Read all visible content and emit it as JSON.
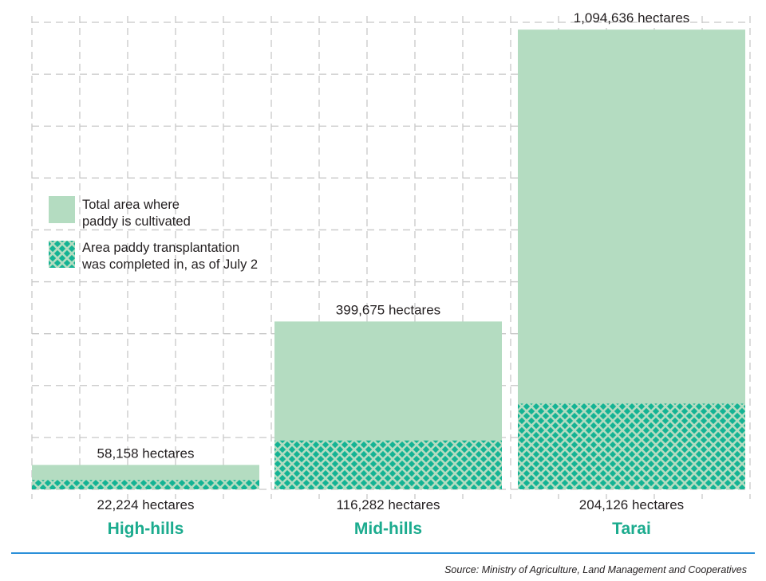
{
  "chart_data": {
    "type": "bar",
    "stacked": "overlay",
    "categories": [
      "High-hills",
      "Mid-hills",
      "Tarai"
    ],
    "series": [
      {
        "name": "Total area where paddy is cultivated",
        "values": [
          58158,
          399675,
          1094636
        ],
        "labels": [
          "58,158  hectares",
          "399,675  hectares",
          "1,094,636  hectares"
        ],
        "color": "#b4dcc1",
        "fill": "solid"
      },
      {
        "name": "Area paddy transplantation was completed in, as of July 2",
        "values": [
          22224,
          116282,
          204126
        ],
        "labels": [
          "22,224 hectares",
          "116,282 hectares",
          "204,126 hectares"
        ],
        "color": "#14b394",
        "fill": "diamond-lattice"
      }
    ],
    "legend": {
      "position": "left-middle",
      "items": [
        [
          "Total area where",
          "paddy is cultivated"
        ],
        [
          "Area paddy transplantation",
          "was completed in, as of July 2"
        ]
      ]
    },
    "ylim": [
      0,
      1112000
    ],
    "grid": true,
    "grid_style": "dashed",
    "category_label_color": "#1bab8e"
  },
  "source": "Source: Ministry of Agriculture, Land Management and Cooperatives",
  "rule_color": "#2b90d9"
}
